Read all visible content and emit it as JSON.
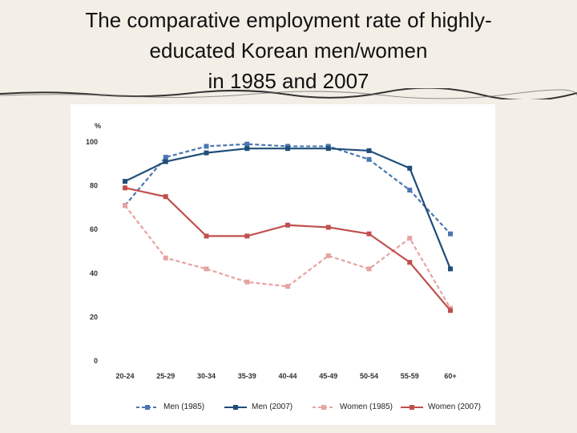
{
  "title": {
    "line1": "The comparative employment rate of highly-",
    "line2": "educated Korean men/women",
    "line3": "in 1985 and 2007"
  },
  "colors": {
    "background": "#f3efe6",
    "panel": "#ffffff",
    "men": "#1f4e79",
    "men_1985": "#4a76b0",
    "women": "#c0504d",
    "women_1985": "#e6a4a2"
  },
  "chart_data": {
    "type": "line",
    "title": "",
    "xlabel": "",
    "ylabel": "%",
    "ylim": [
      0,
      100
    ],
    "yticks": [
      0,
      20,
      40,
      60,
      80,
      100
    ],
    "grid": false,
    "legend_position": "bottom",
    "categories": [
      "20-24",
      "25-29",
      "30-34",
      "35-39",
      "40-44",
      "45-49",
      "50-54",
      "55-59",
      "60+"
    ],
    "series": [
      {
        "name": "Men (1985)",
        "style": "dashed",
        "color": "#4a76b0",
        "values": [
          71,
          93,
          98,
          99,
          98,
          98,
          92,
          78,
          58
        ]
      },
      {
        "name": "Men (2007)",
        "style": "solid",
        "color": "#1f4e79",
        "values": [
          82,
          91,
          95,
          97,
          97,
          97,
          96,
          88,
          42
        ]
      },
      {
        "name": "Women (1985)",
        "style": "dashed",
        "color": "#e6a4a2",
        "values": [
          71,
          47,
          42,
          36,
          34,
          48,
          42,
          56,
          24
        ]
      },
      {
        "name": "Women (2007)",
        "style": "solid",
        "color": "#c0504d",
        "values": [
          79,
          75,
          57,
          57,
          62,
          61,
          58,
          45,
          23
        ]
      }
    ]
  }
}
